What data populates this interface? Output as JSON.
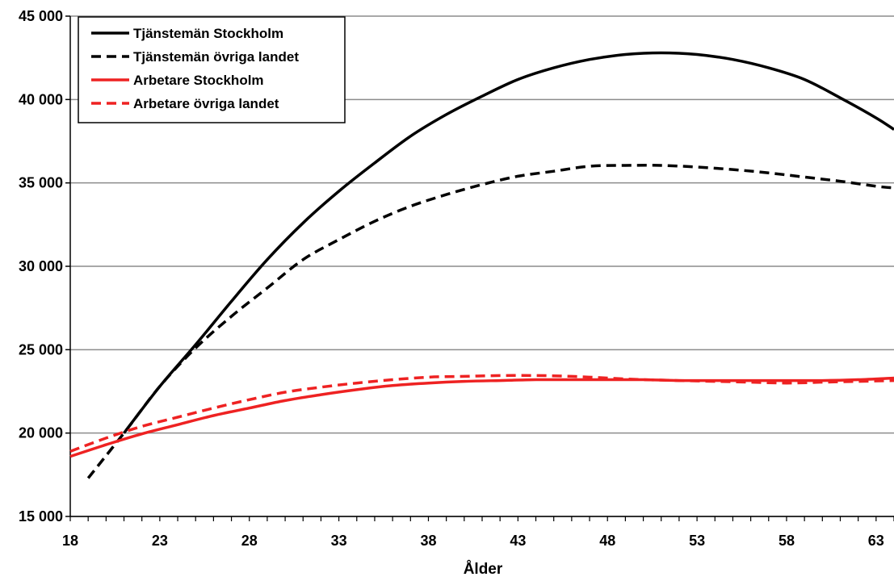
{
  "chart_data": {
    "type": "line",
    "title": "",
    "xlabel": "Ålder",
    "ylabel": "",
    "xlim": [
      18,
      64
    ],
    "ylim": [
      15000,
      45000
    ],
    "x_ticks": [
      18,
      23,
      28,
      33,
      38,
      43,
      48,
      53,
      58,
      63
    ],
    "y_ticks": [
      15000,
      20000,
      25000,
      30000,
      35000,
      40000,
      45000
    ],
    "y_tick_labels": [
      "15 000",
      "20 000",
      "25 000",
      "30 000",
      "35 000",
      "40 000",
      "45 000"
    ],
    "grid": "horizontal",
    "legend_position": "top-left",
    "series": [
      {
        "name": "Tjänstemän Stockholm",
        "color": "#000000",
        "dash": "solid",
        "points": [
          [
            21,
            20000
          ],
          [
            23,
            22800
          ],
          [
            25,
            25300
          ],
          [
            27,
            27900
          ],
          [
            29,
            30400
          ],
          [
            31,
            32600
          ],
          [
            33,
            34500
          ],
          [
            35,
            36200
          ],
          [
            37,
            37800
          ],
          [
            39,
            39100
          ],
          [
            41,
            40200
          ],
          [
            43,
            41200
          ],
          [
            45,
            41900
          ],
          [
            47,
            42400
          ],
          [
            49,
            42700
          ],
          [
            51,
            42800
          ],
          [
            53,
            42700
          ],
          [
            55,
            42400
          ],
          [
            57,
            41900
          ],
          [
            59,
            41200
          ],
          [
            61,
            40100
          ],
          [
            63,
            38900
          ],
          [
            64,
            38200
          ]
        ]
      },
      {
        "name": "Tjänstemän övriga landet",
        "color": "#000000",
        "dash": "dashed",
        "points": [
          [
            19,
            17300
          ],
          [
            21,
            20000
          ],
          [
            23,
            22800
          ],
          [
            25,
            25100
          ],
          [
            27,
            27000
          ],
          [
            29,
            28700
          ],
          [
            31,
            30400
          ],
          [
            33,
            31600
          ],
          [
            35,
            32700
          ],
          [
            37,
            33600
          ],
          [
            39,
            34300
          ],
          [
            41,
            34900
          ],
          [
            43,
            35400
          ],
          [
            45,
            35700
          ],
          [
            47,
            36000
          ],
          [
            49,
            36050
          ],
          [
            51,
            36050
          ],
          [
            53,
            35950
          ],
          [
            55,
            35800
          ],
          [
            57,
            35600
          ],
          [
            59,
            35350
          ],
          [
            61,
            35100
          ],
          [
            63,
            34800
          ],
          [
            64,
            34700
          ]
        ]
      },
      {
        "name": "Arbetare Stockholm",
        "color": "#ee2222",
        "dash": "solid",
        "points": [
          [
            18,
            18600
          ],
          [
            20,
            19300
          ],
          [
            22,
            19950
          ],
          [
            24,
            20500
          ],
          [
            26,
            21050
          ],
          [
            28,
            21500
          ],
          [
            30,
            21950
          ],
          [
            32,
            22300
          ],
          [
            34,
            22600
          ],
          [
            36,
            22850
          ],
          [
            38,
            23000
          ],
          [
            40,
            23100
          ],
          [
            42,
            23150
          ],
          [
            44,
            23200
          ],
          [
            46,
            23200
          ],
          [
            48,
            23200
          ],
          [
            50,
            23200
          ],
          [
            52,
            23150
          ],
          [
            54,
            23150
          ],
          [
            56,
            23150
          ],
          [
            58,
            23150
          ],
          [
            60,
            23150
          ],
          [
            62,
            23200
          ],
          [
            64,
            23300
          ]
        ]
      },
      {
        "name": "Arbetare övriga landet",
        "color": "#ee2222",
        "dash": "dashed",
        "points": [
          [
            18,
            18900
          ],
          [
            20,
            19700
          ],
          [
            22,
            20400
          ],
          [
            24,
            20950
          ],
          [
            26,
            21500
          ],
          [
            28,
            22000
          ],
          [
            30,
            22450
          ],
          [
            32,
            22750
          ],
          [
            34,
            23000
          ],
          [
            36,
            23200
          ],
          [
            38,
            23350
          ],
          [
            40,
            23400
          ],
          [
            42,
            23450
          ],
          [
            44,
            23450
          ],
          [
            46,
            23400
          ],
          [
            48,
            23300
          ],
          [
            50,
            23200
          ],
          [
            52,
            23150
          ],
          [
            54,
            23100
          ],
          [
            56,
            23050
          ],
          [
            58,
            23000
          ],
          [
            60,
            23050
          ],
          [
            62,
            23100
          ],
          [
            64,
            23150
          ]
        ]
      }
    ]
  }
}
